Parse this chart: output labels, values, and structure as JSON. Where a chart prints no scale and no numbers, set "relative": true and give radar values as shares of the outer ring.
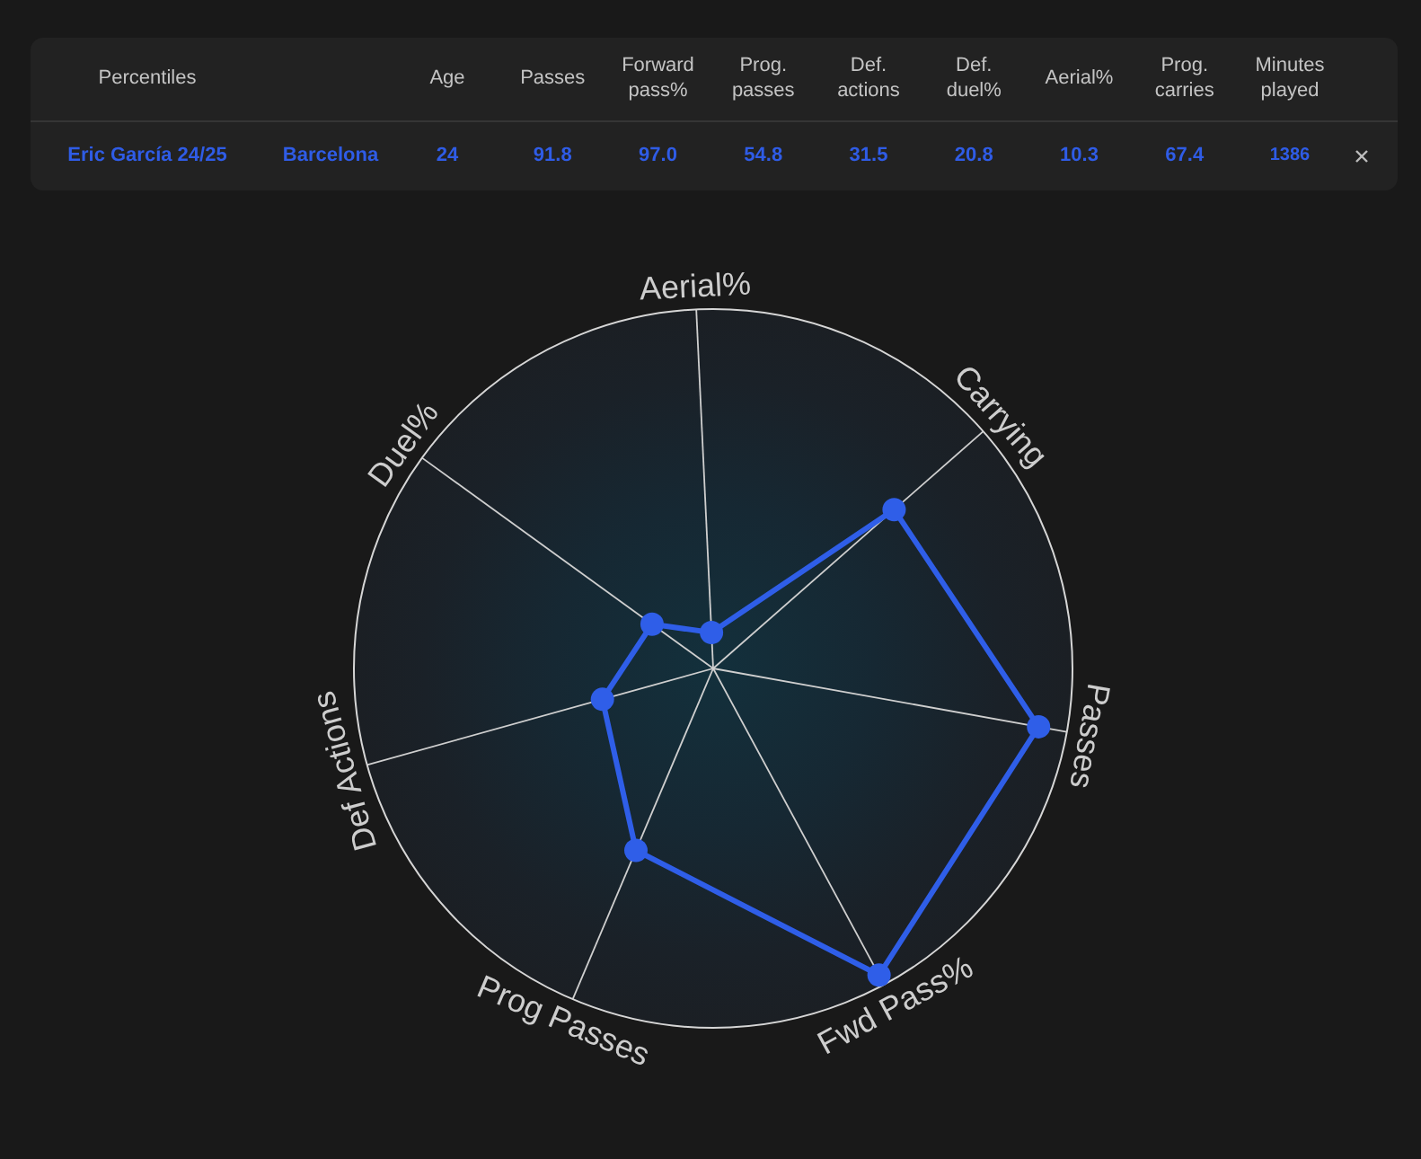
{
  "chart_data": [
    {
      "type": "other",
      "categories": [
        "Percentiles",
        null,
        "Age",
        "Passes",
        "Forward pass%",
        "Prog. passes",
        "Def. actions",
        "Def. duel%",
        "Aerial%",
        "Prog. carries",
        "Minutes played"
      ],
      "values": [
        null,
        null,
        24,
        91.8,
        97.0,
        54.8,
        31.5,
        20.8,
        10.3,
        67.4,
        1386
      ],
      "value_labels": [
        "Eric García 24/25",
        "Barcelona",
        "24",
        "91.8",
        "97.0",
        "54.8",
        "31.5",
        "20.8",
        "10.3",
        "67.4",
        "1386"
      ]
    },
    {
      "type": "radar",
      "categories": [
        "Aerial%",
        "Carrying",
        "Passes",
        "Fwd Pass%",
        "Prog Passes",
        "Def Actions",
        "Duel%"
      ],
      "series": [
        {
          "color": "#2f5ee8",
          "values": [
            0.1,
            0.67,
            0.92,
            0.97,
            0.55,
            0.32,
            0.21
          ]
        }
      ],
      "relative": true,
      "marker": "circle",
      "line_style": "solid"
    }
  ]
}
